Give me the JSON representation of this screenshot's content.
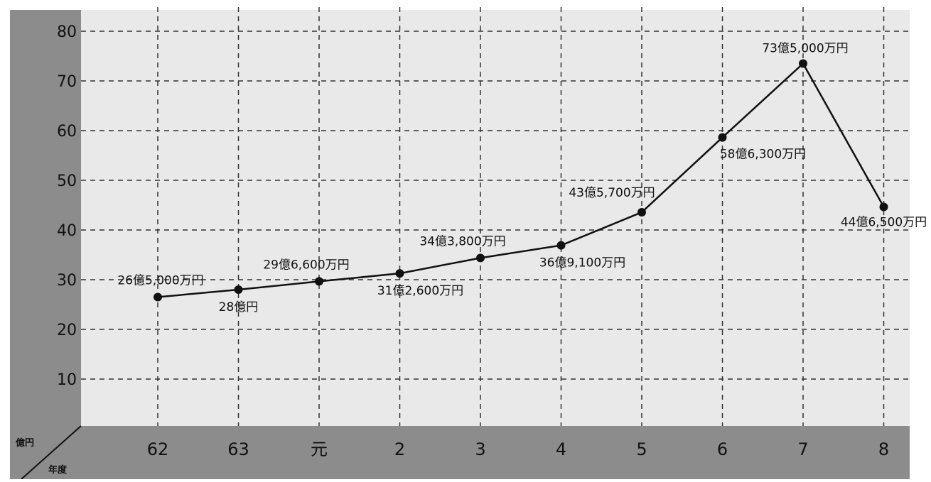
{
  "chart_data": {
    "type": "line",
    "categories": [
      "62",
      "63",
      "元",
      "2",
      "3",
      "4",
      "5",
      "6",
      "7",
      "8"
    ],
    "series": [
      {
        "values": [
          26.5,
          28.0,
          29.66,
          31.26,
          34.38,
          36.91,
          43.57,
          58.63,
          73.5,
          44.65
        ]
      }
    ],
    "data_labels": [
      "26億5,000万円",
      "28億円",
      "29億6,600万円",
      "31億2,600万円",
      "34億3,800万円",
      "36億9,100万円",
      "43億5,700万円",
      "58億6,300万円",
      "73億5,000万円",
      "44億6,500万円"
    ],
    "y_ticks": [
      "10",
      "20",
      "30",
      "40",
      "50",
      "60",
      "70",
      "80"
    ],
    "y_unit_label": "億円",
    "x_unit_label": "年度",
    "ylim": [
      0,
      80
    ],
    "grid": true,
    "colors": {
      "plot_background": "#e9e9e9",
      "axis_band": "#8c8c8c",
      "line": "#111111",
      "grid": "#333333"
    }
  }
}
